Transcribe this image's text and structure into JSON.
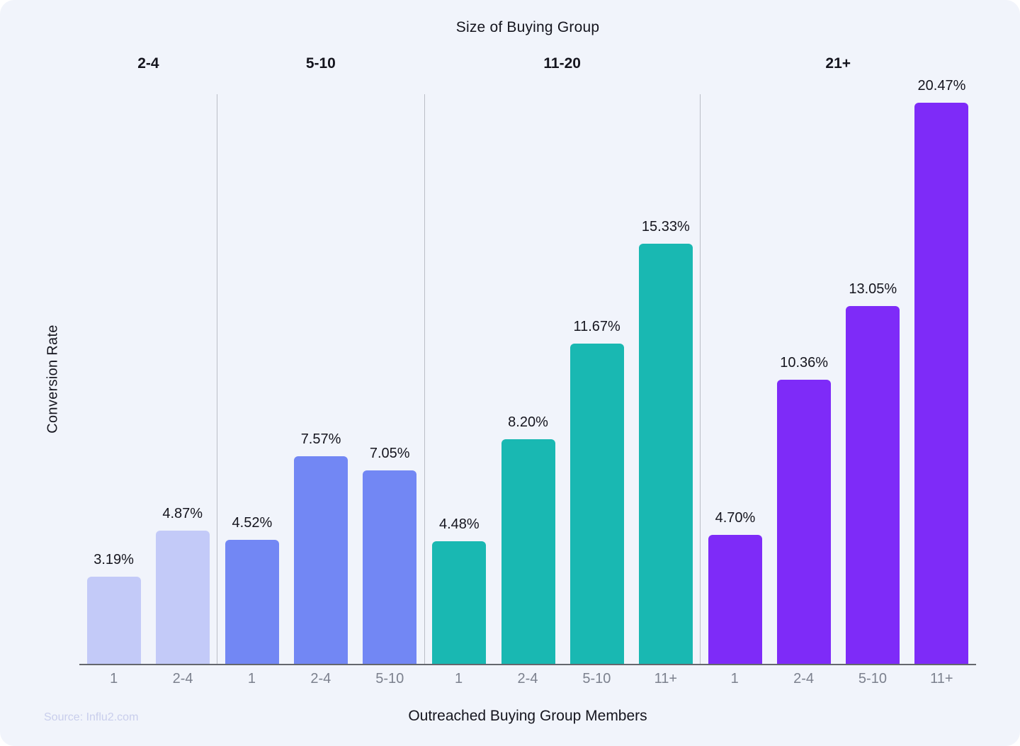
{
  "source": "Source: Influ2.com",
  "chart_data": {
    "type": "bar",
    "title": "Size of Buying Group",
    "xlabel": "Outreached Buying Group Members",
    "ylabel": "Conversion Rate",
    "ylim": [
      0,
      21
    ],
    "grid": false,
    "legend": "none",
    "value_unit": "%",
    "groups": [
      {
        "label": "2-4",
        "color": "#C3CAF8",
        "categories": [
          "1",
          "2-4"
        ],
        "values": [
          3.19,
          4.87
        ],
        "labels": [
          "3.19%",
          "4.87%"
        ]
      },
      {
        "label": "5-10",
        "color": "#7287F4",
        "categories": [
          "1",
          "2-4",
          "5-10"
        ],
        "values": [
          4.52,
          7.57,
          7.05
        ],
        "labels": [
          "4.52%",
          "7.57%",
          "7.05%"
        ]
      },
      {
        "label": "11-20",
        "color": "#19B8B2",
        "categories": [
          "1",
          "2-4",
          "5-10",
          "11+"
        ],
        "values": [
          4.48,
          8.2,
          11.67,
          15.33
        ],
        "labels": [
          "4.48%",
          "8.20%",
          "11.67%",
          "15.33%"
        ]
      },
      {
        "label": "21+",
        "color": "#7E2BF8",
        "categories": [
          "1",
          "2-4",
          "5-10",
          "11+"
        ],
        "values": [
          4.7,
          10.36,
          13.05,
          20.47
        ],
        "labels": [
          "4.70%",
          "10.36%",
          "13.05%",
          "20.47%"
        ]
      }
    ]
  }
}
